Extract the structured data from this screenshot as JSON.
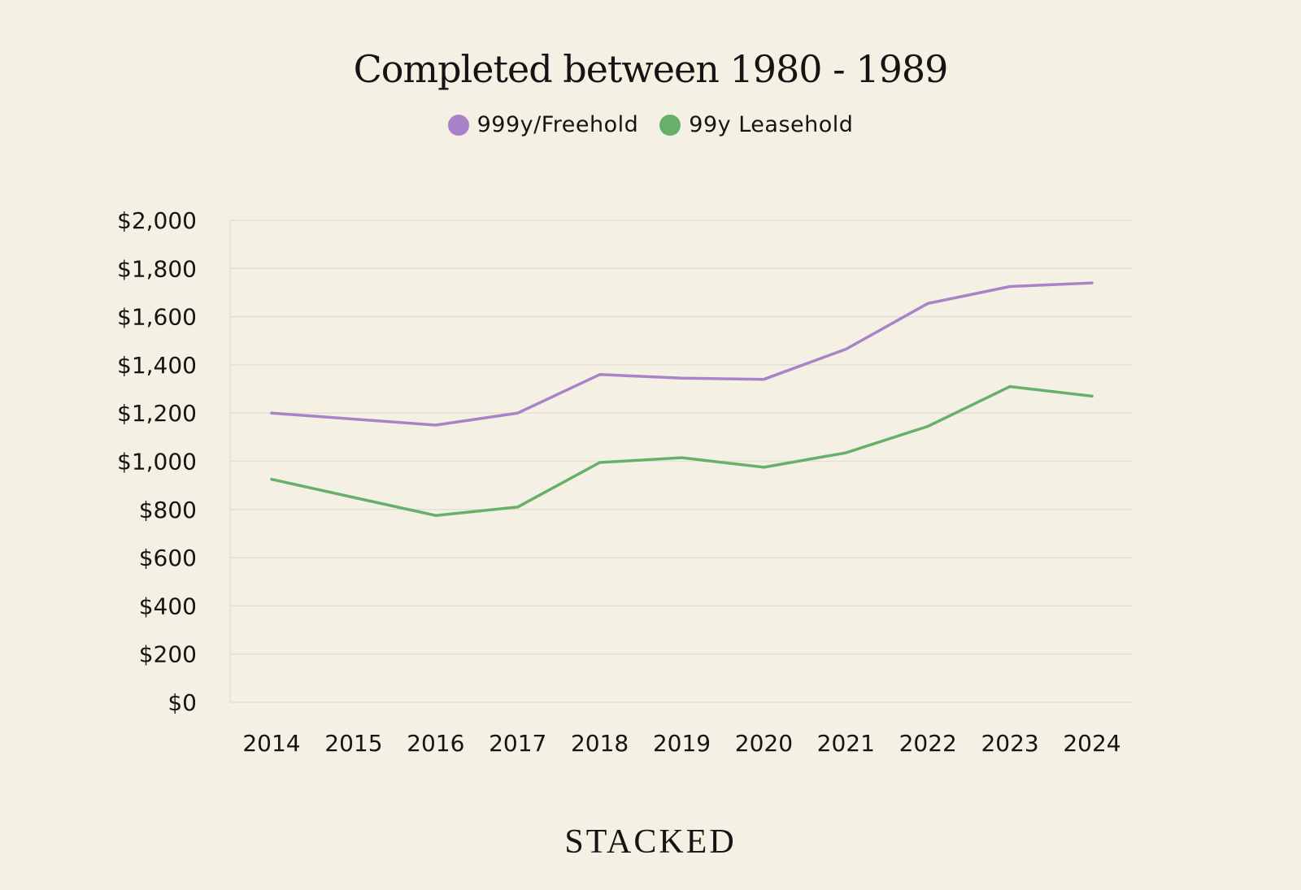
{
  "colors": {
    "background": "#f4f0e4",
    "grid": "#e3dfd2",
    "text": "#141414"
  },
  "chart_data": {
    "type": "line",
    "title": "Completed between 1980 - 1989",
    "xlabel": "",
    "ylabel": "",
    "categories": [
      "2014",
      "2015",
      "2016",
      "2017",
      "2018",
      "2019",
      "2020",
      "2021",
      "2022",
      "2023",
      "2024"
    ],
    "y_tick_labels": [
      "$0",
      "$200",
      "$400",
      "$600",
      "$800",
      "$1,000",
      "$1,200",
      "$1,400",
      "$1,600",
      "$1,800",
      "$2,000"
    ],
    "ylim": [
      0,
      2000
    ],
    "y_tick_step": 200,
    "grid": true,
    "legend_position": "top",
    "series": [
      {
        "name": "999y/Freehold",
        "color": "#a883c7",
        "values": [
          1200,
          1175,
          1150,
          1200,
          1360,
          1345,
          1340,
          1465,
          1655,
          1725,
          1740
        ]
      },
      {
        "name": "99y Leasehold",
        "color": "#66b06a",
        "values": [
          925,
          850,
          775,
          810,
          995,
          1015,
          975,
          1035,
          1145,
          1310,
          1270
        ]
      }
    ]
  },
  "brand": "STACKED"
}
